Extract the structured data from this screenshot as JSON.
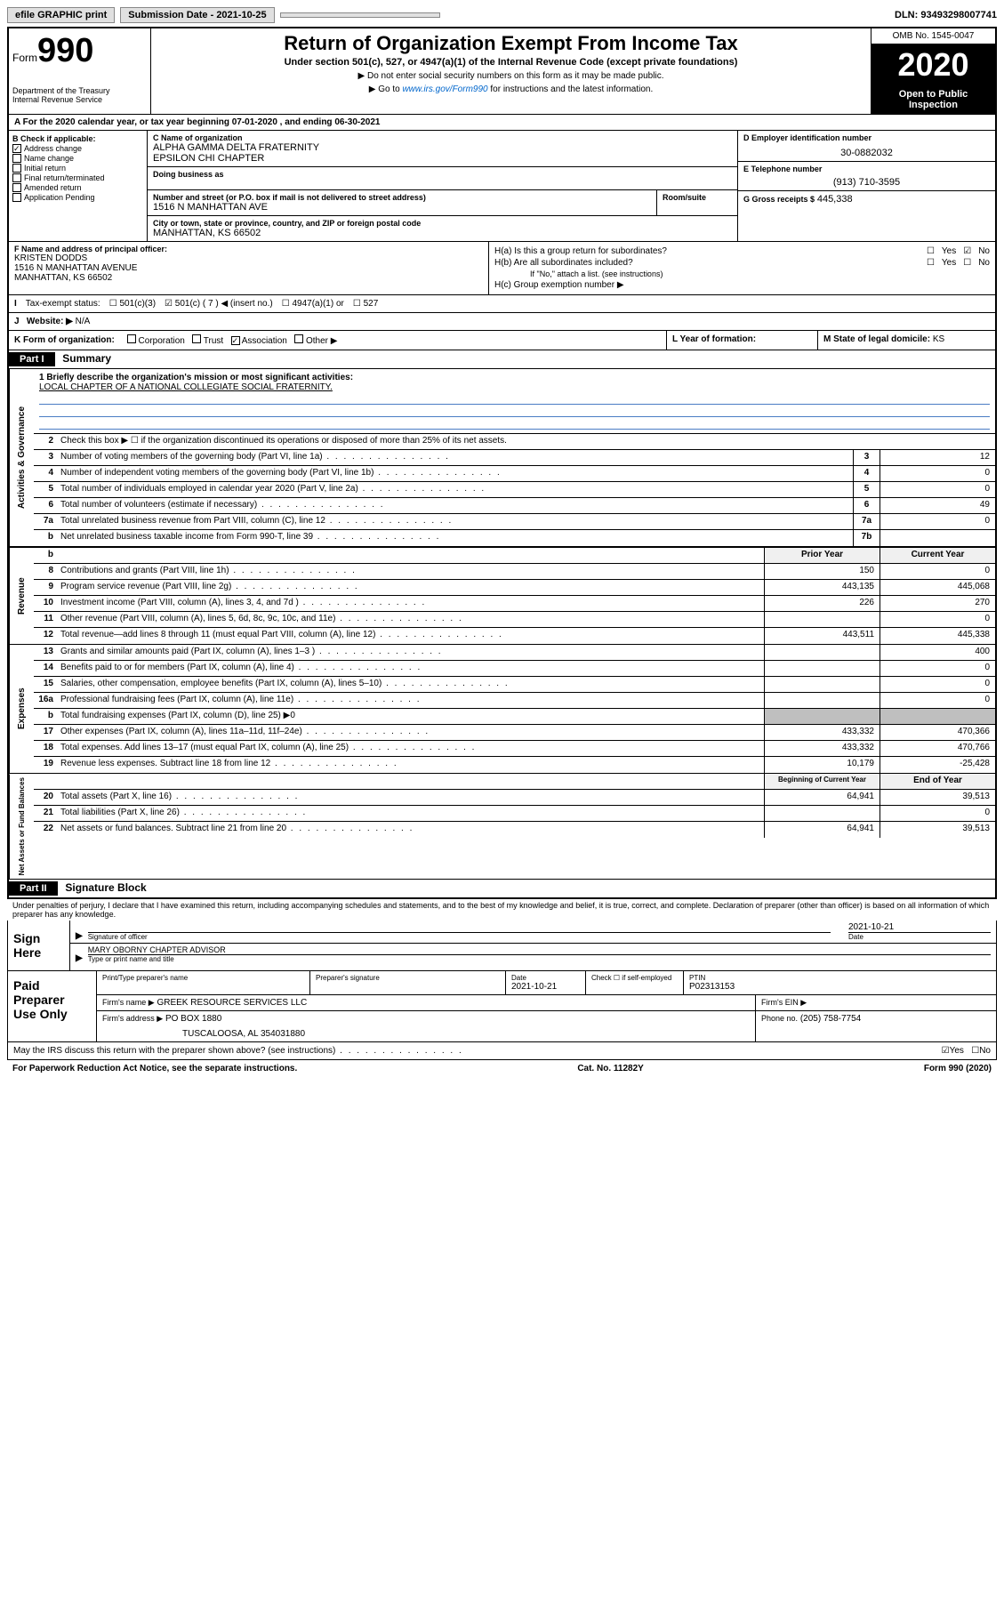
{
  "topbar": {
    "efile": "efile GRAPHIC print",
    "submission": "Submission Date - 2021-10-25",
    "dln": "DLN: 93493298007741"
  },
  "header": {
    "form_label": "Form",
    "form_num": "990",
    "dept": "Department of the Treasury\nInternal Revenue Service",
    "title": "Return of Organization Exempt From Income Tax",
    "subtitle": "Under section 501(c), 527, or 4947(a)(1) of the Internal Revenue Code (except private foundations)",
    "note1": "▶ Do not enter social security numbers on this form as it may be made public.",
    "note2_pre": "▶ Go to ",
    "note2_link": "www.irs.gov/Form990",
    "note2_post": " for instructions and the latest information.",
    "omb": "OMB No. 1545-0047",
    "year": "2020",
    "open": "Open to Public Inspection"
  },
  "row_a": "A For the 2020 calendar year, or tax year beginning 07-01-2020    , and ending 06-30-2021",
  "section_b": {
    "label": "B Check if applicable:",
    "items": [
      "Address change",
      "Name change",
      "Initial return",
      "Final return/terminated",
      "Amended return",
      "Application Pending"
    ],
    "checked_idx": 0
  },
  "section_c": {
    "name_lbl": "C Name of organization",
    "name": "ALPHA GAMMA DELTA FRATERNITY\nEPSILON CHI CHAPTER",
    "dba_lbl": "Doing business as",
    "addr_lbl": "Number and street (or P.O. box if mail is not delivered to street address)",
    "addr": "1516 N MANHATTAN AVE",
    "room_lbl": "Room/suite",
    "city_lbl": "City or town, state or province, country, and ZIP or foreign postal code",
    "city": "MANHATTAN, KS  66502"
  },
  "section_d": {
    "ein_lbl": "D Employer identification number",
    "ein": "30-0882032",
    "phone_lbl": "E Telephone number",
    "phone": "(913) 710-3595",
    "gross_lbl": "G Gross receipts $",
    "gross": "445,338"
  },
  "section_f": {
    "lbl": "F Name and address of principal officer:",
    "name": "KRISTEN DODDS",
    "addr1": "1516 N MANHATTAN AVENUE",
    "addr2": "MANHATTAN, KS  66502"
  },
  "section_h": {
    "ha": "H(a)  Is this a group return for subordinates?",
    "hb": "H(b)  Are all subordinates included?",
    "hb_note": "If \"No,\" attach a list. (see instructions)",
    "hc": "H(c)  Group exemption number ▶",
    "yes": "Yes",
    "no": "No"
  },
  "row_i": {
    "lbl": "Tax-exempt status:",
    "opt1": "501(c)(3)",
    "opt2": "501(c) ( 7 ) ◀ (insert no.)",
    "opt3": "4947(a)(1) or",
    "opt4": "527"
  },
  "row_j": {
    "lbl": "Website: ▶",
    "val": "N/A"
  },
  "row_k": {
    "lbl": "K Form of organization:",
    "opts": [
      "Corporation",
      "Trust",
      "Association",
      "Other ▶"
    ],
    "checked_idx": 2,
    "l_lbl": "L Year of formation:",
    "m_lbl": "M State of legal domicile:",
    "m_val": "KS"
  },
  "part1": {
    "hdr": "Part I",
    "title": "Summary",
    "line1_lbl": "1  Briefly describe the organization's mission or most significant activities:",
    "line1_val": "LOCAL CHAPTER OF A NATIONAL COLLEGIATE SOCIAL FRATERNITY.",
    "line2": "Check this box ▶ ☐  if the organization discontinued its operations or disposed of more than 25% of its net assets.",
    "sections": [
      {
        "side": "Activities & Governance",
        "lines": [
          {
            "n": "3",
            "t": "Number of voting members of the governing body (Part VI, line 1a)",
            "box": "3",
            "v2": "12"
          },
          {
            "n": "4",
            "t": "Number of independent voting members of the governing body (Part VI, line 1b)",
            "box": "4",
            "v2": "0"
          },
          {
            "n": "5",
            "t": "Total number of individuals employed in calendar year 2020 (Part V, line 2a)",
            "box": "5",
            "v2": "0"
          },
          {
            "n": "6",
            "t": "Total number of volunteers (estimate if necessary)",
            "box": "6",
            "v2": "49"
          },
          {
            "n": "7a",
            "t": "Total unrelated business revenue from Part VIII, column (C), line 12",
            "box": "7a",
            "v2": "0"
          },
          {
            "n": "b",
            "t": "Net unrelated business taxable income from Form 990-T, line 39",
            "box": "7b",
            "v2": ""
          }
        ]
      }
    ],
    "hdr_prior": "Prior Year",
    "hdr_current": "Current Year",
    "revenue": {
      "side": "Revenue",
      "lines": [
        {
          "n": "8",
          "t": "Contributions and grants (Part VIII, line 1h)",
          "v1": "150",
          "v2": "0"
        },
        {
          "n": "9",
          "t": "Program service revenue (Part VIII, line 2g)",
          "v1": "443,135",
          "v2": "445,068"
        },
        {
          "n": "10",
          "t": "Investment income (Part VIII, column (A), lines 3, 4, and 7d )",
          "v1": "226",
          "v2": "270"
        },
        {
          "n": "11",
          "t": "Other revenue (Part VIII, column (A), lines 5, 6d, 8c, 9c, 10c, and 11e)",
          "v1": "",
          "v2": "0"
        },
        {
          "n": "12",
          "t": "Total revenue—add lines 8 through 11 (must equal Part VIII, column (A), line 12)",
          "v1": "443,511",
          "v2": "445,338"
        }
      ]
    },
    "expenses": {
      "side": "Expenses",
      "lines": [
        {
          "n": "13",
          "t": "Grants and similar amounts paid (Part IX, column (A), lines 1–3 )",
          "v1": "",
          "v2": "400"
        },
        {
          "n": "14",
          "t": "Benefits paid to or for members (Part IX, column (A), line 4)",
          "v1": "",
          "v2": "0"
        },
        {
          "n": "15",
          "t": "Salaries, other compensation, employee benefits (Part IX, column (A), lines 5–10)",
          "v1": "",
          "v2": "0"
        },
        {
          "n": "16a",
          "t": "Professional fundraising fees (Part IX, column (A), line 11e)",
          "v1": "",
          "v2": "0"
        },
        {
          "n": "b",
          "t": "Total fundraising expenses (Part IX, column (D), line 25) ▶0",
          "gray": true
        },
        {
          "n": "17",
          "t": "Other expenses (Part IX, column (A), lines 11a–11d, 11f–24e)",
          "v1": "433,332",
          "v2": "470,366"
        },
        {
          "n": "18",
          "t": "Total expenses. Add lines 13–17 (must equal Part IX, column (A), line 25)",
          "v1": "433,332",
          "v2": "470,766"
        },
        {
          "n": "19",
          "t": "Revenue less expenses. Subtract line 18 from line 12",
          "v1": "10,179",
          "v2": "-25,428"
        }
      ]
    },
    "hdr_begin": "Beginning of Current Year",
    "hdr_end": "End of Year",
    "netassets": {
      "side": "Net Assets or Fund Balances",
      "lines": [
        {
          "n": "20",
          "t": "Total assets (Part X, line 16)",
          "v1": "64,941",
          "v2": "39,513"
        },
        {
          "n": "21",
          "t": "Total liabilities (Part X, line 26)",
          "v1": "",
          "v2": "0"
        },
        {
          "n": "22",
          "t": "Net assets or fund balances. Subtract line 21 from line 20",
          "v1": "64,941",
          "v2": "39,513"
        }
      ]
    }
  },
  "part2": {
    "hdr": "Part II",
    "title": "Signature Block",
    "penalty": "Under penalties of perjury, I declare that I have examined this return, including accompanying schedules and statements, and to the best of my knowledge and belief, it is true, correct, and complete. Declaration of preparer (other than officer) is based on all information of which preparer has any knowledge."
  },
  "sign": {
    "label": "Sign Here",
    "sig_lbl": "Signature of officer",
    "date": "2021-10-21",
    "date_lbl": "Date",
    "name": "MARY OBORNY  CHAPTER ADVISOR",
    "name_lbl": "Type or print name and title"
  },
  "prep": {
    "label": "Paid Preparer Use Only",
    "h1": "Print/Type preparer's name",
    "h2": "Preparer's signature",
    "h3": "Date",
    "h3v": "2021-10-21",
    "h4": "Check ☐ if self-employed",
    "h5": "PTIN",
    "h5v": "P02313153",
    "firm_lbl": "Firm's name    ▶",
    "firm": "GREEK RESOURCE SERVICES LLC",
    "ein_lbl": "Firm's EIN ▶",
    "addr_lbl": "Firm's address ▶",
    "addr1": "PO BOX 1880",
    "addr2": "TUSCALOOSA, AL  354031880",
    "phone_lbl": "Phone no.",
    "phone": "(205) 758-7754"
  },
  "footer": {
    "q": "May the IRS discuss this return with the preparer shown above? (see instructions)",
    "yes": "Yes",
    "no": "No",
    "paperwork": "For Paperwork Reduction Act Notice, see the separate instructions.",
    "cat": "Cat. No. 11282Y",
    "form": "Form 990 (2020)"
  }
}
